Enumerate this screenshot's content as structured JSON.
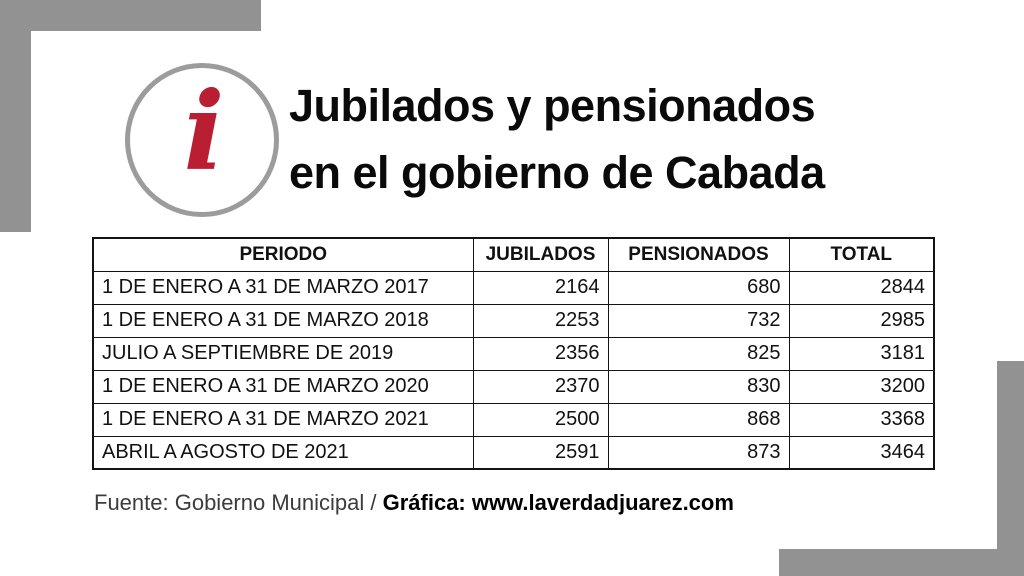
{
  "colors": {
    "decor_gray": "#929292",
    "badge_ring_gray": "#9c9c9c",
    "info_red": "#b91e32",
    "table_border": "#141414"
  },
  "icon": {
    "info_glyph": "i"
  },
  "title": {
    "line1": "Jubilados y pensionados",
    "line2": "en el gobierno de Cabada"
  },
  "table": {
    "headers": [
      "PERIODO",
      "JUBILADOS",
      "PENSIONADOS",
      "TOTAL"
    ],
    "rows": [
      {
        "periodo": "1 DE ENERO A 31 DE MARZO 2017",
        "jubilados": "2164",
        "pensionados": "680",
        "total": "2844"
      },
      {
        "periodo": "1 DE ENERO A 31 DE MARZO 2018",
        "jubilados": "2253",
        "pensionados": "732",
        "total": "2985"
      },
      {
        "periodo": "JULIO A SEPTIEMBRE DE 2019",
        "jubilados": "2356",
        "pensionados": "825",
        "total": "3181"
      },
      {
        "periodo": "1 DE ENERO A 31 DE MARZO 2020",
        "jubilados": "2370",
        "pensionados": "830",
        "total": "3200"
      },
      {
        "periodo": "1 DE ENERO A 31 DE MARZO 2021",
        "jubilados": "2500",
        "pensionados": "868",
        "total": "3368"
      },
      {
        "periodo": "ABRIL A AGOSTO DE 2021",
        "jubilados": "2591",
        "pensionados": "873",
        "total": "3464"
      }
    ]
  },
  "footer": {
    "source": "Fuente: Gobierno Municipal / ",
    "credit": "Gráfica: www.laverdadjuarez.com"
  },
  "chart_data": {
    "type": "table",
    "title": "Jubilados y pensionados en el gobierno de Cabada",
    "columns": [
      "PERIODO",
      "JUBILADOS",
      "PENSIONADOS",
      "TOTAL"
    ],
    "categories": [
      "1 DE ENERO A 31 DE MARZO 2017",
      "1 DE ENERO A 31 DE MARZO 2018",
      "JULIO A SEPTIEMBRE DE 2019",
      "1 DE ENERO A 31 DE MARZO 2020",
      "1 DE ENERO A 31 DE MARZO 2021",
      "ABRIL A AGOSTO DE 2021"
    ],
    "series": [
      {
        "name": "JUBILADOS",
        "values": [
          2164,
          2253,
          2356,
          2370,
          2500,
          2591
        ]
      },
      {
        "name": "PENSIONADOS",
        "values": [
          680,
          732,
          825,
          830,
          868,
          873
        ]
      },
      {
        "name": "TOTAL",
        "values": [
          2844,
          2985,
          3181,
          3200,
          3368,
          3464
        ]
      }
    ]
  }
}
